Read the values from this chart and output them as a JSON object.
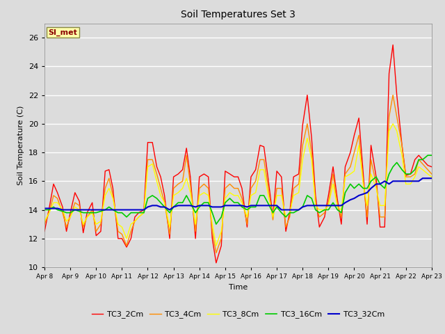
{
  "title": "Soil Temperatures Set 3",
  "xlabel": "Time",
  "ylabel": "Soil Temperature (C)",
  "ylim": [
    10,
    27
  ],
  "xlim": [
    0,
    15
  ],
  "background_color": "#dcdcdc",
  "annotation_text": "SI_met",
  "annotation_color": "#8b0000",
  "annotation_bg": "#ffffaa",
  "x_tick_labels": [
    "Apr 8",
    "Apr 9",
    "Apr 10",
    "Apr 11",
    "Apr 12",
    "Apr 13",
    "Apr 14",
    "Apr 15",
    "Apr 16",
    "Apr 17",
    "Apr 18",
    "Apr 19",
    "Apr 20",
    "Apr 21",
    "Apr 22",
    "Apr 23"
  ],
  "legend_entries": [
    "TC3_2Cm",
    "TC3_4Cm",
    "TC3_8Cm",
    "TC3_16Cm",
    "TC3_32Cm"
  ],
  "line_colors": [
    "#ff0000",
    "#ff8c00",
    "#ffff00",
    "#00cc00",
    "#0000cc"
  ],
  "TC3_2Cm_x": [
    0.0,
    0.18,
    0.35,
    0.5,
    0.7,
    0.85,
    1.0,
    1.18,
    1.35,
    1.5,
    1.65,
    1.85,
    2.0,
    2.18,
    2.35,
    2.5,
    2.65,
    2.85,
    3.0,
    3.18,
    3.35,
    3.5,
    3.65,
    3.85,
    4.0,
    4.18,
    4.35,
    4.5,
    4.65,
    4.85,
    5.0,
    5.18,
    5.35,
    5.5,
    5.65,
    5.85,
    6.0,
    6.18,
    6.35,
    6.5,
    6.65,
    6.85,
    7.0,
    7.18,
    7.35,
    7.5,
    7.65,
    7.85,
    8.0,
    8.18,
    8.35,
    8.5,
    8.65,
    8.85,
    9.0,
    9.18,
    9.35,
    9.5,
    9.65,
    9.85,
    10.0,
    10.18,
    10.35,
    10.5,
    10.65,
    10.85,
    11.0,
    11.18,
    11.35,
    11.5,
    11.65,
    11.85,
    12.0,
    12.18,
    12.35,
    12.5,
    12.65,
    12.85,
    13.0,
    13.18,
    13.35,
    13.5,
    13.65,
    13.85,
    14.0,
    14.18,
    14.35,
    14.5,
    14.65,
    14.85,
    15.0
  ],
  "TC3_2Cm": [
    12.5,
    14.1,
    15.8,
    15.2,
    14.2,
    12.5,
    13.8,
    15.2,
    14.6,
    12.4,
    13.8,
    14.5,
    12.2,
    12.5,
    16.7,
    16.8,
    15.5,
    12.0,
    12.0,
    11.4,
    12.0,
    13.5,
    13.8,
    14.0,
    18.7,
    18.7,
    17.0,
    16.3,
    15.0,
    12.0,
    16.3,
    16.5,
    16.8,
    18.3,
    16.3,
    12.0,
    16.3,
    16.5,
    16.3,
    12.0,
    10.3,
    11.5,
    16.7,
    16.5,
    16.3,
    16.3,
    15.5,
    12.8,
    16.3,
    16.8,
    18.5,
    18.4,
    16.4,
    13.5,
    16.7,
    16.3,
    12.5,
    13.8,
    16.3,
    16.5,
    19.9,
    22.0,
    19.0,
    15.0,
    12.8,
    13.5,
    15.0,
    17.0,
    14.7,
    13.0,
    17.0,
    18.0,
    19.2,
    20.4,
    16.5,
    13.0,
    18.5,
    16.3,
    12.8,
    12.8,
    23.5,
    25.5,
    22.0,
    18.5,
    16.4,
    16.5,
    17.5,
    17.8,
    17.5,
    17.1,
    17.0
  ],
  "TC3_4Cm": [
    13.0,
    13.8,
    15.0,
    14.8,
    13.8,
    12.8,
    13.5,
    14.5,
    14.3,
    12.8,
    13.5,
    14.0,
    12.5,
    13.0,
    15.5,
    16.2,
    15.0,
    12.5,
    12.3,
    11.5,
    12.5,
    13.2,
    13.5,
    13.8,
    17.5,
    17.5,
    16.5,
    15.5,
    14.5,
    12.3,
    15.5,
    15.8,
    16.0,
    17.8,
    15.8,
    12.5,
    15.5,
    15.8,
    15.5,
    12.5,
    11.0,
    12.0,
    15.5,
    15.8,
    15.5,
    15.5,
    14.8,
    13.0,
    15.5,
    16.0,
    17.5,
    17.5,
    15.8,
    13.3,
    15.5,
    15.5,
    12.8,
    13.5,
    15.5,
    15.8,
    18.5,
    20.0,
    18.0,
    14.5,
    13.5,
    13.8,
    14.5,
    16.5,
    14.3,
    13.5,
    16.5,
    17.0,
    18.0,
    19.2,
    16.0,
    13.5,
    17.5,
    15.8,
    13.5,
    13.5,
    20.5,
    22.0,
    20.5,
    18.5,
    16.3,
    16.3,
    16.5,
    17.5,
    17.2,
    16.8,
    16.5
  ],
  "TC3_8Cm": [
    13.2,
    13.8,
    14.5,
    14.5,
    14.0,
    13.2,
    13.5,
    14.2,
    14.0,
    13.0,
    13.5,
    13.8,
    13.0,
    13.2,
    15.0,
    15.5,
    14.8,
    13.0,
    12.8,
    12.0,
    13.0,
    13.2,
    13.5,
    13.8,
    17.0,
    17.2,
    16.0,
    15.0,
    14.5,
    12.8,
    15.0,
    15.2,
    15.5,
    16.2,
    15.2,
    13.0,
    15.0,
    15.2,
    15.0,
    13.0,
    11.5,
    12.5,
    14.8,
    15.2,
    15.0,
    15.0,
    14.5,
    13.5,
    15.0,
    15.2,
    16.8,
    16.8,
    15.2,
    13.5,
    15.0,
    15.0,
    13.5,
    13.8,
    15.0,
    15.2,
    17.5,
    19.0,
    17.5,
    14.3,
    14.0,
    14.0,
    14.3,
    15.8,
    14.2,
    14.0,
    16.3,
    16.5,
    16.7,
    18.5,
    15.8,
    14.3,
    16.5,
    15.5,
    14.3,
    14.3,
    19.5,
    20.0,
    19.5,
    17.8,
    15.8,
    15.8,
    16.3,
    17.0,
    16.8,
    16.5,
    16.3
  ],
  "TC3_16Cm": [
    14.0,
    14.0,
    14.2,
    14.0,
    13.9,
    13.8,
    13.8,
    14.0,
    13.9,
    13.8,
    13.8,
    13.8,
    13.8,
    13.9,
    14.0,
    14.2,
    14.0,
    13.8,
    13.8,
    13.5,
    13.8,
    13.8,
    13.8,
    13.8,
    14.8,
    15.0,
    14.8,
    14.5,
    14.2,
    13.8,
    14.2,
    14.5,
    14.5,
    15.0,
    14.5,
    13.8,
    14.2,
    14.5,
    14.5,
    13.8,
    13.0,
    13.5,
    14.5,
    14.8,
    14.5,
    14.5,
    14.2,
    14.0,
    14.2,
    14.2,
    15.0,
    15.0,
    14.5,
    13.8,
    14.2,
    13.8,
    13.5,
    13.8,
    13.8,
    14.0,
    14.2,
    15.0,
    14.8,
    14.0,
    13.8,
    14.0,
    14.0,
    14.5,
    14.0,
    13.8,
    15.2,
    15.8,
    15.5,
    15.8,
    15.5,
    15.5,
    16.0,
    16.3,
    15.8,
    15.5,
    16.5,
    17.0,
    17.3,
    16.8,
    16.5,
    16.5,
    16.8,
    17.5,
    17.5,
    17.8,
    17.8
  ],
  "TC3_32Cm": [
    14.1,
    14.1,
    14.1,
    14.1,
    14.0,
    14.0,
    14.0,
    14.0,
    14.0,
    14.0,
    14.0,
    14.0,
    14.0,
    14.0,
    14.0,
    14.0,
    14.0,
    14.0,
    14.0,
    14.0,
    14.0,
    14.0,
    14.0,
    14.0,
    14.2,
    14.3,
    14.3,
    14.2,
    14.2,
    14.0,
    14.2,
    14.3,
    14.3,
    14.3,
    14.3,
    14.2,
    14.3,
    14.3,
    14.3,
    14.2,
    14.2,
    14.2,
    14.3,
    14.3,
    14.3,
    14.3,
    14.3,
    14.2,
    14.3,
    14.3,
    14.3,
    14.3,
    14.3,
    14.3,
    14.3,
    14.0,
    14.0,
    14.0,
    14.0,
    14.0,
    14.2,
    14.3,
    14.3,
    14.3,
    14.3,
    14.3,
    14.3,
    14.3,
    14.3,
    14.3,
    14.5,
    14.7,
    14.8,
    15.0,
    15.1,
    15.2,
    15.5,
    15.8,
    15.8,
    16.0,
    15.8,
    16.0,
    16.0,
    16.0,
    16.0,
    16.0,
    16.0,
    16.0,
    16.2,
    16.2,
    16.2
  ]
}
